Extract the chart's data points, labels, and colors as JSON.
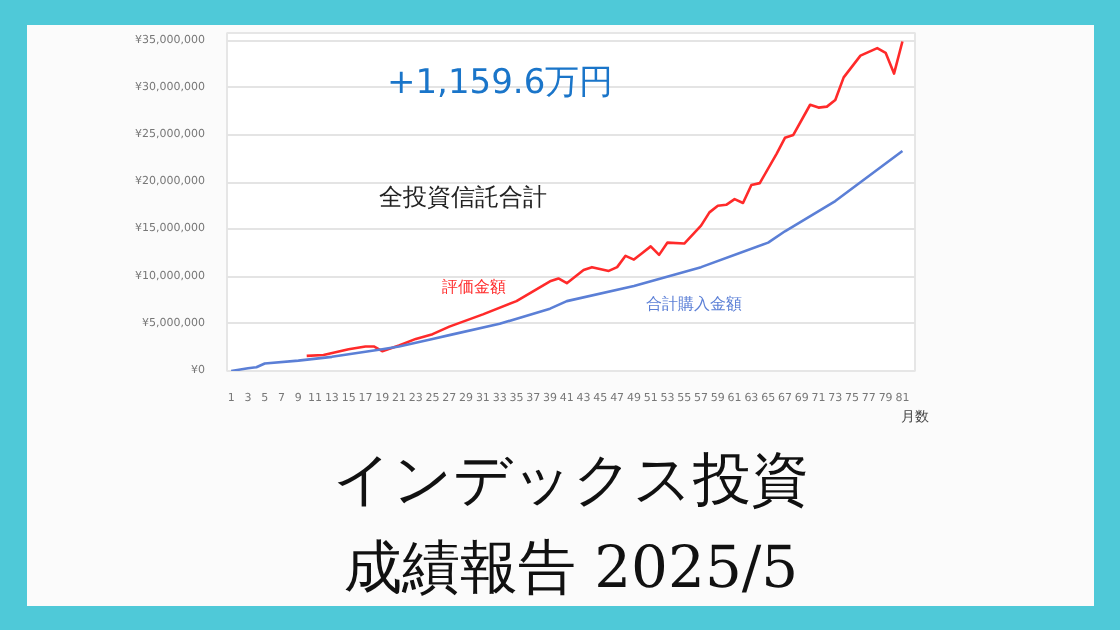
{
  "chart_data": {
    "type": "line",
    "title": "インデックス投資",
    "subtitle": "成績報告 2025/5",
    "xlabel": "月数",
    "annotations": [
      "+1,159.6万円",
      "全投資信託合計"
    ],
    "xlim": [
      0.5,
      82.5
    ],
    "xticks": [
      1,
      3,
      5,
      7,
      9,
      11,
      13,
      15,
      17,
      19,
      21,
      23,
      25,
      27,
      29,
      31,
      33,
      35,
      37,
      39,
      41,
      43,
      45,
      47,
      49,
      51,
      53,
      55,
      57,
      59,
      61,
      63,
      65,
      67,
      69,
      71,
      73,
      75,
      77,
      79,
      81
    ],
    "ylim": [
      0,
      35800000
    ],
    "yticks": [
      {
        "value": 0,
        "label": "¥0"
      },
      {
        "value": 5000000,
        "label": "¥5,000,000"
      },
      {
        "value": 10000000,
        "label": "¥10,000,000"
      },
      {
        "value": 15000000,
        "label": "¥15,000,000"
      },
      {
        "value": 20000000,
        "label": "¥20,000,000"
      },
      {
        "value": 25000000,
        "label": "¥25,000,000"
      },
      {
        "value": 30000000,
        "label": "¥30,000,000"
      },
      {
        "value": 35000000,
        "label": "¥35,000,000"
      }
    ],
    "grid": "y",
    "legend": false,
    "marker": "none",
    "line_style": "solid",
    "series": [
      {
        "name": "評価金額",
        "color": "#ff2a2a",
        "x": [
          10,
          12,
          15,
          17,
          18,
          19,
          21,
          23,
          25,
          27,
          31,
          35,
          39,
          40,
          41,
          43,
          44,
          46,
          47,
          48,
          49,
          50,
          51,
          52,
          53,
          55,
          57,
          58,
          59,
          60,
          61,
          62,
          63,
          64,
          66,
          67,
          68,
          70,
          71,
          72,
          73,
          74,
          76,
          78,
          79,
          80,
          81
        ],
        "values": [
          1600000,
          1700000,
          2300000,
          2600000,
          2600000,
          2100000,
          2700000,
          3400000,
          3900000,
          4700000,
          6000000,
          7400000,
          9500000,
          9800000,
          9300000,
          10700000,
          11000000,
          10600000,
          11000000,
          12200000,
          11800000,
          12500000,
          13200000,
          12300000,
          13600000,
          13500000,
          15400000,
          16800000,
          17500000,
          17600000,
          18200000,
          17800000,
          19700000,
          19900000,
          23000000,
          24700000,
          25000000,
          28200000,
          27900000,
          28000000,
          28700000,
          31100000,
          33400000,
          34200000,
          33700000,
          31500000,
          34900000
        ]
      },
      {
        "name": "合計購入金額",
        "color": "#5b7fd6",
        "x": [
          1,
          3,
          4,
          5,
          9,
          13,
          19,
          21,
          25,
          27,
          33,
          39,
          41,
          49,
          57,
          65,
          67,
          73,
          81
        ],
        "values": [
          0,
          300000,
          400000,
          800000,
          1100000,
          1500000,
          2300000,
          2600000,
          3400000,
          3800000,
          5000000,
          6600000,
          7400000,
          9000000,
          11000000,
          13600000,
          14800000,
          18000000,
          23300000
        ]
      }
    ]
  }
}
